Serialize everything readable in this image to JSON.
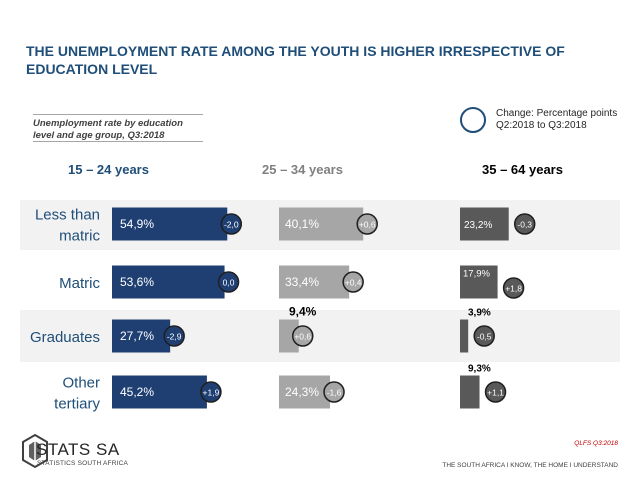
{
  "title": "THE UNEMPLOYMENT RATE AMONG THE YOUTH IS HIGHER IRRESPECTIVE OF EDUCATION LEVEL",
  "subtitle": "Unemployment rate by education level and age group, Q3:2018",
  "legend": {
    "label": "Change: Percentage points Q2:2018 to Q3:2018"
  },
  "source": "QLFS Q3:2018",
  "tagline": "THE SOUTH AFRICA I KNOW, THE HOME I UNDERSTAND",
  "logo": {
    "name": "STATS SA",
    "sub": "STATISTICS SOUTH AFRICA"
  },
  "colors": {
    "youth": "#1f3f73",
    "mid": "#a6a6a6",
    "older": "#595959",
    "row_band": "#f2f2f2",
    "category_text": "#1f4e79",
    "youth_head": "#1f4e79",
    "mid_head": "#808080",
    "older_head": "#000000"
  },
  "chart_data": {
    "type": "bar",
    "orientation": "horizontal",
    "categories": [
      "Less than matric",
      "Matric",
      "Graduates",
      "Other tertiary"
    ],
    "category_lines": [
      [
        "Less than",
        "matric"
      ],
      [
        "Matric"
      ],
      [
        "Graduates"
      ],
      [
        "Other",
        "tertiary"
      ]
    ],
    "groups": [
      {
        "name": "15 – 24 years",
        "values": [
          54.9,
          53.6,
          27.7,
          45.2
        ],
        "labels": [
          "54,9%",
          "53,6%",
          "27,7%",
          "45,2%"
        ],
        "changes": [
          "-2,0",
          "0,0",
          "-2,9",
          "+1,9"
        ]
      },
      {
        "name": "25 – 34 years",
        "values": [
          40.1,
          33.4,
          9.4,
          24.3
        ],
        "labels": [
          "40,1%",
          "33,4%",
          "9,4%",
          "24,3%"
        ],
        "changes": [
          "+0,6",
          "+0,4",
          "+0,6",
          "-1,6"
        ]
      },
      {
        "name": "35 – 64 years",
        "values": [
          23.2,
          17.9,
          3.9,
          9.3
        ],
        "labels": [
          "23,2%",
          "17,9%",
          "3,9%",
          "9,3%"
        ],
        "changes": [
          "-0,3",
          "+1,8",
          "-0,5",
          "+1,1"
        ]
      }
    ]
  }
}
